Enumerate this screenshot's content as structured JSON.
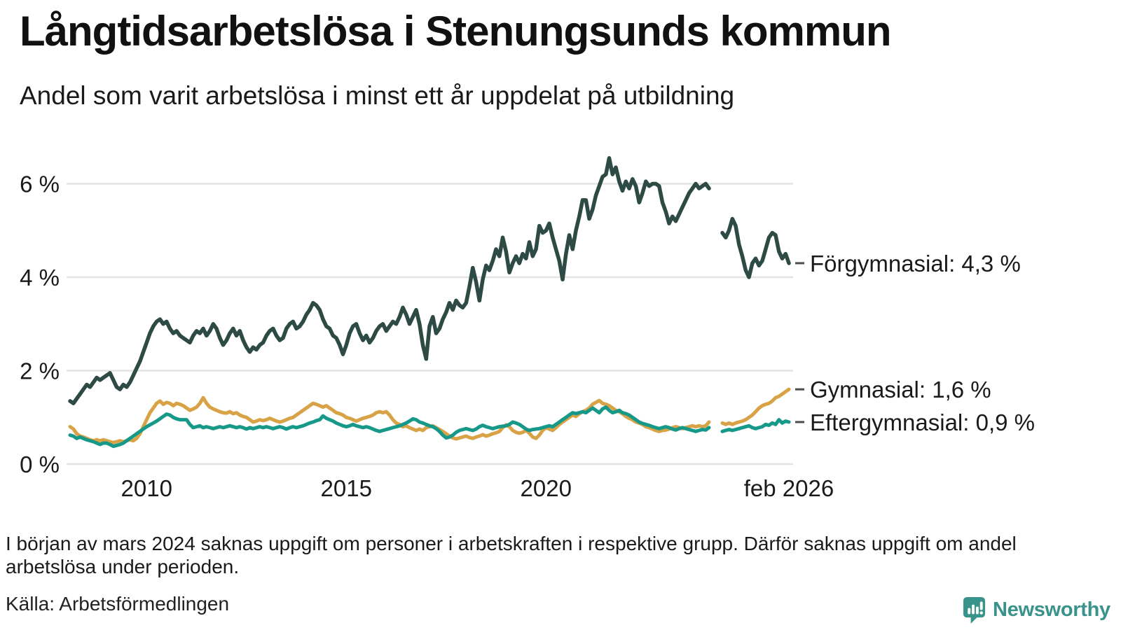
{
  "header": {
    "title": "Långtidsarbetslösa i Stenungsunds kommun",
    "subtitle": "Andel som varit arbetslösa i minst ett år uppdelat på utbildning"
  },
  "chart_data": {
    "type": "line",
    "unit": "%",
    "x_start": 2008.0833,
    "x_step": "1 month",
    "xlim": [
      2008.0,
      2026.4
    ],
    "ylim": [
      0,
      6.8
    ],
    "grid": "horizontal",
    "legend_position": "right-end-labels",
    "background": "#ffffff",
    "gridline_color": "#e3e3e3",
    "text_color": "#1a1a1a",
    "y_ticks": [
      {
        "value": 0,
        "label": "0 %"
      },
      {
        "value": 2,
        "label": "2 %"
      },
      {
        "value": 4,
        "label": "4 %"
      },
      {
        "value": 6,
        "label": "6 %"
      }
    ],
    "x_ticks": [
      {
        "year": 2010.0,
        "label": "2010"
      },
      {
        "year": 2015.0,
        "label": "2015"
      },
      {
        "year": 2020.0,
        "label": "2020"
      },
      {
        "year": 2026.0833,
        "label": "feb 2026"
      }
    ],
    "data_gap_months": [
      "2024-03",
      "2024-04",
      "2024-05"
    ],
    "series": [
      {
        "name": "Förgymnasial",
        "color": "#2d4b44",
        "stroke_width": 5.5,
        "end_label": "Förgymnasial: 4,3 %",
        "last_value": 4.3,
        "values": [
          1.35,
          1.3,
          1.4,
          1.5,
          1.6,
          1.7,
          1.65,
          1.75,
          1.85,
          1.8,
          1.85,
          1.9,
          1.95,
          1.8,
          1.65,
          1.6,
          1.7,
          1.65,
          1.75,
          1.9,
          2.05,
          2.2,
          2.4,
          2.6,
          2.8,
          2.95,
          3.05,
          3.1,
          3.0,
          3.05,
          2.9,
          2.8,
          2.85,
          2.75,
          2.7,
          2.65,
          2.6,
          2.75,
          2.85,
          2.8,
          2.9,
          2.75,
          2.85,
          3.0,
          2.9,
          2.7,
          2.55,
          2.65,
          2.8,
          2.9,
          2.75,
          2.85,
          2.65,
          2.5,
          2.4,
          2.5,
          2.45,
          2.55,
          2.6,
          2.75,
          2.85,
          2.9,
          2.75,
          2.65,
          2.7,
          2.9,
          3.0,
          3.05,
          2.9,
          2.95,
          3.05,
          3.2,
          3.3,
          3.45,
          3.4,
          3.3,
          3.1,
          2.95,
          2.9,
          2.75,
          2.7,
          2.55,
          2.35,
          2.55,
          2.8,
          2.95,
          3.0,
          2.8,
          2.65,
          2.75,
          2.6,
          2.7,
          2.85,
          2.95,
          3.0,
          2.85,
          2.95,
          3.05,
          3.0,
          3.15,
          3.35,
          3.2,
          3.0,
          3.15,
          3.3,
          3.0,
          2.55,
          2.25,
          2.95,
          3.15,
          2.8,
          2.9,
          3.1,
          3.25,
          3.45,
          3.3,
          3.5,
          3.4,
          3.35,
          3.45,
          3.8,
          4.2,
          3.9,
          3.5,
          3.95,
          4.25,
          4.15,
          4.35,
          4.6,
          4.45,
          4.85,
          4.55,
          4.1,
          4.3,
          4.45,
          4.3,
          4.5,
          4.4,
          4.75,
          4.45,
          4.6,
          5.1,
          4.95,
          5.0,
          5.15,
          4.85,
          4.6,
          4.35,
          3.95,
          4.5,
          4.9,
          4.6,
          5.0,
          5.3,
          5.65,
          5.65,
          5.25,
          5.45,
          5.75,
          5.95,
          6.15,
          6.2,
          6.55,
          6.2,
          6.35,
          6.05,
          5.85,
          6.05,
          5.9,
          6.1,
          5.95,
          5.6,
          5.8,
          6.05,
          5.95,
          6.0,
          6.0,
          5.95,
          5.6,
          5.4,
          5.15,
          5.3,
          5.2,
          5.35,
          5.5,
          5.65,
          5.8,
          5.9,
          6.0,
          5.9,
          5.95,
          6.0,
          5.9,
          null,
          null,
          null,
          4.95,
          4.85,
          5.0,
          5.25,
          5.1,
          4.7,
          4.45,
          4.15,
          4.0,
          4.3,
          4.4,
          4.25,
          4.35,
          4.6,
          4.85,
          4.95,
          4.9,
          4.55,
          4.4,
          4.5,
          4.3
        ]
      },
      {
        "name": "Gymnasial",
        "color": "#d8a347",
        "stroke_width": 5,
        "end_label": "Gymnasial: 1,6 %",
        "last_value": 1.6,
        "values": [
          0.8,
          0.75,
          0.65,
          0.6,
          0.58,
          0.55,
          0.52,
          0.5,
          0.52,
          0.5,
          0.52,
          0.5,
          0.48,
          0.46,
          0.48,
          0.5,
          0.48,
          0.5,
          0.52,
          0.5,
          0.55,
          0.65,
          0.8,
          0.95,
          1.1,
          1.2,
          1.3,
          1.35,
          1.28,
          1.32,
          1.3,
          1.25,
          1.3,
          1.28,
          1.25,
          1.2,
          1.15,
          1.18,
          1.22,
          1.3,
          1.42,
          1.3,
          1.22,
          1.18,
          1.15,
          1.12,
          1.1,
          1.09,
          1.12,
          1.08,
          1.1,
          1.05,
          1.02,
          1.0,
          0.95,
          0.9,
          0.92,
          0.95,
          0.93,
          0.95,
          0.98,
          0.95,
          0.92,
          0.9,
          0.92,
          0.95,
          0.98,
          1.0,
          1.05,
          1.1,
          1.15,
          1.2,
          1.25,
          1.3,
          1.28,
          1.25,
          1.22,
          1.25,
          1.2,
          1.15,
          1.1,
          1.08,
          1.05,
          1.0,
          0.98,
          0.95,
          0.92,
          0.95,
          0.98,
          1.0,
          1.02,
          1.05,
          1.1,
          1.12,
          1.1,
          1.12,
          1.05,
          0.95,
          0.88,
          0.85,
          0.8,
          0.82,
          0.78,
          0.75,
          0.72,
          0.75,
          0.72,
          0.78,
          0.8,
          0.82,
          0.78,
          0.74,
          0.7,
          0.65,
          0.6,
          0.56,
          0.54,
          0.56,
          0.58,
          0.6,
          0.57,
          0.55,
          0.58,
          0.6,
          0.63,
          0.6,
          0.62,
          0.65,
          0.67,
          0.7,
          0.78,
          0.84,
          0.8,
          0.72,
          0.68,
          0.66,
          0.68,
          0.72,
          0.66,
          0.58,
          0.55,
          0.62,
          0.72,
          0.78,
          0.75,
          0.72,
          0.78,
          0.85,
          0.9,
          0.95,
          1.0,
          1.05,
          1.02,
          1.08,
          1.12,
          1.15,
          1.2,
          1.28,
          1.32,
          1.36,
          1.3,
          1.28,
          1.25,
          1.2,
          1.15,
          1.12,
          1.08,
          1.02,
          0.98,
          0.95,
          0.9,
          0.88,
          0.85,
          0.8,
          0.78,
          0.75,
          0.72,
          0.7,
          0.72,
          0.73,
          0.75,
          0.78,
          0.8,
          0.78,
          0.76,
          0.78,
          0.8,
          0.82,
          0.8,
          0.82,
          0.8,
          0.82,
          0.9,
          null,
          null,
          null,
          0.88,
          0.85,
          0.88,
          0.85,
          0.88,
          0.9,
          0.92,
          0.95,
          1.0,
          1.05,
          1.12,
          1.2,
          1.25,
          1.28,
          1.3,
          1.35,
          1.42,
          1.45,
          1.5,
          1.55,
          1.6
        ]
      },
      {
        "name": "Eftergymnasial",
        "color": "#17998a",
        "stroke_width": 5,
        "end_label": "Eftergymnasial: 0,9 %",
        "last_value": 0.9,
        "values": [
          0.62,
          0.6,
          0.55,
          0.58,
          0.55,
          0.52,
          0.5,
          0.48,
          0.45,
          0.42,
          0.45,
          0.45,
          0.42,
          0.38,
          0.4,
          0.42,
          0.45,
          0.5,
          0.55,
          0.6,
          0.65,
          0.7,
          0.75,
          0.8,
          0.84,
          0.88,
          0.92,
          0.97,
          1.02,
          1.07,
          1.05,
          1.0,
          0.97,
          0.95,
          0.95,
          0.95,
          0.85,
          0.78,
          0.8,
          0.82,
          0.78,
          0.8,
          0.78,
          0.76,
          0.78,
          0.8,
          0.78,
          0.8,
          0.82,
          0.8,
          0.78,
          0.8,
          0.78,
          0.75,
          0.78,
          0.76,
          0.78,
          0.8,
          0.78,
          0.8,
          0.78,
          0.76,
          0.78,
          0.8,
          0.78,
          0.75,
          0.78,
          0.8,
          0.78,
          0.8,
          0.82,
          0.85,
          0.88,
          0.9,
          0.93,
          0.95,
          1.03,
          0.98,
          0.95,
          0.92,
          0.88,
          0.85,
          0.82,
          0.8,
          0.82,
          0.85,
          0.82,
          0.8,
          0.78,
          0.8,
          0.78,
          0.75,
          0.72,
          0.7,
          0.72,
          0.74,
          0.76,
          0.78,
          0.8,
          0.82,
          0.85,
          0.88,
          0.92,
          0.97,
          0.95,
          0.9,
          0.88,
          0.85,
          0.82,
          0.8,
          0.76,
          0.7,
          0.62,
          0.56,
          0.58,
          0.62,
          0.68,
          0.72,
          0.74,
          0.76,
          0.74,
          0.72,
          0.75,
          0.8,
          0.83,
          0.8,
          0.78,
          0.76,
          0.78,
          0.8,
          0.81,
          0.82,
          0.85,
          0.9,
          0.88,
          0.85,
          0.8,
          0.75,
          0.72,
          0.74,
          0.75,
          0.76,
          0.78,
          0.8,
          0.82,
          0.8,
          0.85,
          0.9,
          0.95,
          1.0,
          1.05,
          1.1,
          1.08,
          1.1,
          1.12,
          1.1,
          1.15,
          1.2,
          1.15,
          1.1,
          1.18,
          1.22,
          1.15,
          1.1,
          1.12,
          1.15,
          1.1,
          1.08,
          1.05,
          1.0,
          0.95,
          0.9,
          0.87,
          0.85,
          0.83,
          0.8,
          0.78,
          0.76,
          0.78,
          0.8,
          0.78,
          0.75,
          0.73,
          0.76,
          0.78,
          0.76,
          0.74,
          0.72,
          0.7,
          0.72,
          0.74,
          0.73,
          0.78,
          null,
          null,
          null,
          0.7,
          0.72,
          0.74,
          0.72,
          0.74,
          0.76,
          0.78,
          0.8,
          0.82,
          0.78,
          0.76,
          0.78,
          0.8,
          0.85,
          0.83,
          0.88,
          0.85,
          0.95,
          0.88,
          0.92,
          0.9
        ]
      }
    ]
  },
  "footnote": "I början av mars 2024 saknas uppgift om personer i arbetskraften i respektive grupp. Därför saknas uppgift om andel arbetslösa under perioden.",
  "source": "Källa: Arbetsförmedlingen",
  "logo": {
    "text": "Newsworthy",
    "color": "#3a938a",
    "icon": "newsworthy-chart-bubble-icon"
  }
}
